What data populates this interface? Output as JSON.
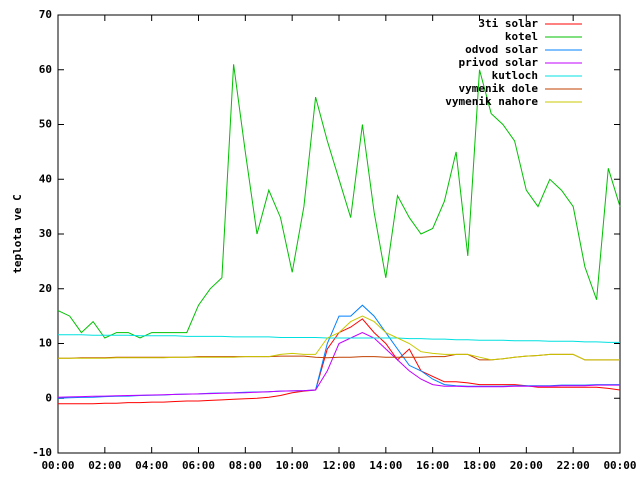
{
  "chart_data": {
    "type": "line",
    "ylabel": "teplota ve C",
    "ylim": [
      -10,
      70
    ],
    "yticks": [
      -10,
      0,
      10,
      20,
      30,
      40,
      50,
      60,
      70
    ],
    "xlim": [
      0,
      24
    ],
    "xticks": [
      {
        "value": 0,
        "label": "00:00"
      },
      {
        "value": 2,
        "label": "02:00"
      },
      {
        "value": 4,
        "label": "04:00"
      },
      {
        "value": 6,
        "label": "06:00"
      },
      {
        "value": 8,
        "label": "08:00"
      },
      {
        "value": 10,
        "label": "10:00"
      },
      {
        "value": 12,
        "label": "12:00"
      },
      {
        "value": 14,
        "label": "14:00"
      },
      {
        "value": 16,
        "label": "16:00"
      },
      {
        "value": 18,
        "label": "18:00"
      },
      {
        "value": 20,
        "label": "20:00"
      },
      {
        "value": 22,
        "label": "22:00"
      },
      {
        "value": 24,
        "label": "00:00"
      }
    ],
    "legend": "upper right",
    "x": [
      0,
      0.5,
      1,
      1.5,
      2,
      2.5,
      3,
      3.5,
      4,
      4.5,
      5,
      5.5,
      6,
      6.5,
      7,
      7.5,
      8,
      8.5,
      9,
      9.5,
      10,
      10.5,
      11,
      11.5,
      12,
      12.5,
      13,
      13.5,
      14,
      14.5,
      15,
      15.5,
      16,
      16.5,
      17,
      17.5,
      18,
      18.5,
      19,
      19.5,
      20,
      20.5,
      21,
      21.5,
      22,
      22.5,
      23,
      23.5,
      24
    ],
    "series": [
      {
        "name": "3ti solar",
        "color": "#ff0000",
        "values": [
          -1,
          -1,
          -1,
          -1,
          -0.9,
          -0.9,
          -0.8,
          -0.8,
          -0.7,
          -0.7,
          -0.6,
          -0.5,
          -0.5,
          -0.4,
          -0.3,
          -0.2,
          -0.1,
          0,
          0.2,
          0.5,
          1,
          1.3,
          1.5,
          9,
          12,
          13,
          14.5,
          12,
          10,
          7,
          9,
          5,
          4,
          3,
          3,
          2.8,
          2.5,
          2.5,
          2.5,
          2.5,
          2.3,
          2,
          2,
          2,
          2,
          2,
          2,
          1.8,
          1.5
        ]
      },
      {
        "name": "kotel",
        "color": "#00c000",
        "values": [
          16,
          15,
          12,
          14,
          11,
          12,
          12,
          11,
          12,
          12,
          12,
          12,
          17,
          20,
          22,
          61,
          45,
          30,
          38,
          33,
          23,
          35,
          55,
          47,
          40,
          33,
          50,
          34,
          22,
          37,
          33,
          30,
          31,
          36,
          45,
          26,
          60,
          52,
          50,
          47,
          38,
          35,
          40,
          38,
          35,
          24,
          18,
          42,
          35
        ]
      },
      {
        "name": "odvod solar",
        "color": "#0080ff",
        "values": [
          0,
          0.1,
          0.15,
          0.2,
          0.3,
          0.35,
          0.4,
          0.5,
          0.55,
          0.6,
          0.7,
          0.75,
          0.8,
          0.9,
          0.95,
          1,
          1.1,
          1.15,
          1.2,
          1.3,
          1.35,
          1.4,
          1.5,
          10,
          15,
          15,
          17,
          15,
          12,
          9,
          6,
          5,
          3.5,
          2.5,
          2.3,
          2.2,
          2.2,
          2.2,
          2.2,
          2.3,
          2.3,
          2.3,
          2.3,
          2.4,
          2.4,
          2.4,
          2.5,
          2.5,
          2.5
        ]
      },
      {
        "name": "privod solar",
        "color": "#c000ff",
        "values": [
          0.2,
          0.25,
          0.3,
          0.35,
          0.4,
          0.45,
          0.5,
          0.55,
          0.6,
          0.65,
          0.7,
          0.75,
          0.8,
          0.85,
          0.9,
          0.95,
          1,
          1.1,
          1.2,
          1.3,
          1.35,
          1.4,
          1.5,
          5,
          10,
          11,
          12,
          11,
          9,
          7,
          5,
          3.5,
          2.5,
          2.2,
          2.2,
          2.1,
          2.1,
          2.1,
          2.1,
          2.2,
          2.2,
          2.2,
          2.2,
          2.3,
          2.3,
          2.3,
          2.4,
          2.4,
          2.4
        ]
      },
      {
        "name": "kutloch",
        "color": "#00e0e0",
        "values": [
          11.6,
          11.6,
          11.6,
          11.5,
          11.5,
          11.5,
          11.5,
          11.4,
          11.4,
          11.4,
          11.4,
          11.3,
          11.3,
          11.3,
          11.3,
          11.2,
          11.2,
          11.2,
          11.2,
          11.1,
          11.1,
          11.1,
          11.1,
          11,
          11,
          11,
          11,
          11,
          11,
          11,
          10.9,
          10.9,
          10.8,
          10.8,
          10.7,
          10.7,
          10.6,
          10.6,
          10.6,
          10.5,
          10.5,
          10.5,
          10.4,
          10.4,
          10.4,
          10.3,
          10.3,
          10.2,
          10.2
        ]
      },
      {
        "name": "vymenik dole",
        "color": "#c04000",
        "values": [
          7.3,
          7.3,
          7.4,
          7.4,
          7.4,
          7.5,
          7.5,
          7.5,
          7.5,
          7.5,
          7.5,
          7.5,
          7.6,
          7.6,
          7.6,
          7.6,
          7.6,
          7.6,
          7.6,
          7.7,
          7.7,
          7.7,
          7.5,
          7.4,
          7.5,
          7.5,
          7.6,
          7.6,
          7.5,
          7.5,
          7.5,
          7.5,
          7.6,
          7.6,
          8,
          8,
          7,
          7,
          7.2,
          7.5,
          7.7,
          7.8,
          8,
          8,
          8,
          7,
          7,
          7,
          7
        ]
      },
      {
        "name": "vymenik nahore",
        "color": "#c8c800",
        "values": [
          7.3,
          7.3,
          7.3,
          7.3,
          7.3,
          7.4,
          7.4,
          7.4,
          7.4,
          7.4,
          7.5,
          7.5,
          7.5,
          7.5,
          7.5,
          7.5,
          7.6,
          7.6,
          7.6,
          8,
          8.2,
          8,
          8,
          11,
          12,
          14,
          15,
          14,
          12,
          11,
          10,
          8.5,
          8.2,
          8,
          8,
          8,
          7.5,
          7,
          7.2,
          7.5,
          7.7,
          7.8,
          8,
          8,
          8,
          7,
          7,
          7,
          7
        ]
      }
    ]
  }
}
